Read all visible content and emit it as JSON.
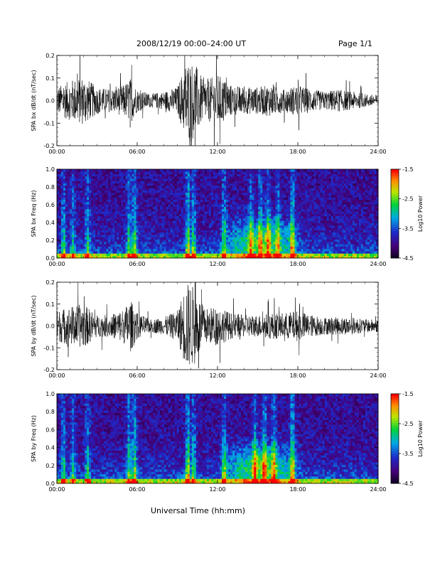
{
  "page": {
    "title": "2008/12/19   00:00–24:00 UT",
    "page_label": "Page 1/1",
    "x_title": "Universal Time (hh:mm)"
  },
  "colors": {
    "waveform": "#000000",
    "spectrogram_low": "#1a0033",
    "spectrogram_high": "#ff0000"
  },
  "colorbar": {
    "label": "Log10 Power",
    "ticks": [
      "-1.5",
      "-2.5",
      "-3.5",
      "-4.5"
    ],
    "range": [
      -4.5,
      -1.5
    ]
  },
  "chart_data": [
    {
      "type": "line",
      "ylabel": "SPA bx dB/dt (nT/sec)",
      "xlim": [
        0,
        24
      ],
      "ylim": [
        -0.2,
        0.2
      ],
      "x_ticks": [
        "00:00",
        "06:00",
        "12:00",
        "18:00",
        "24:00"
      ],
      "y_ticks": [
        "0.2",
        "0.1",
        "0.0",
        "-0.1",
        "-0.2"
      ],
      "envelope": {
        "x": [
          0,
          1,
          2,
          3,
          4,
          5,
          5.5,
          6,
          7,
          8,
          9,
          9.7,
          10.3,
          11,
          12,
          13,
          14,
          15,
          16,
          17,
          18,
          19,
          20,
          21,
          22,
          23,
          24
        ],
        "amplitude": [
          0.06,
          0.09,
          0.11,
          0.06,
          0.05,
          0.07,
          0.1,
          0.05,
          0.03,
          0.04,
          0.06,
          0.18,
          0.17,
          0.08,
          0.12,
          0.07,
          0.06,
          0.06,
          0.07,
          0.05,
          0.07,
          0.05,
          0.04,
          0.05,
          0.04,
          0.03,
          0.025
        ]
      }
    },
    {
      "type": "heatmap",
      "ylabel": "SPA bx Freq (Hz)",
      "xlim": [
        0,
        24
      ],
      "ylim": [
        0,
        1.0
      ],
      "x_ticks": [
        "00:00",
        "06:00",
        "12:00",
        "18:00",
        "24:00"
      ],
      "y_ticks": [
        "1.0",
        "0.8",
        "0.6",
        "0.4",
        "0.2",
        "0.0"
      ],
      "bursts": {
        "t": [
          0.5,
          1.2,
          2.3,
          5.4,
          5.8,
          9.8,
          10.2,
          12.5,
          14.5,
          15.2,
          15.8,
          16.5,
          17.6
        ],
        "strength": [
          0.6,
          0.5,
          0.6,
          0.7,
          0.8,
          0.9,
          0.7,
          0.7,
          0.6,
          0.7,
          0.7,
          0.6,
          0.9
        ]
      }
    },
    {
      "type": "line",
      "ylabel": "SPA by dB/dt (nT/sec)",
      "xlim": [
        0,
        24
      ],
      "ylim": [
        -0.2,
        0.2
      ],
      "x_ticks": [
        "00:00",
        "06:00",
        "12:00",
        "18:00",
        "24:00"
      ],
      "y_ticks": [
        "0.2",
        "0.1",
        "0.0",
        "-0.1",
        "-0.2"
      ],
      "envelope": {
        "x": [
          0,
          1,
          2,
          3,
          4,
          5,
          5.5,
          6,
          7,
          8,
          9,
          9.7,
          10.3,
          11,
          12,
          13,
          14,
          15,
          16,
          17,
          18,
          19,
          20,
          21,
          22,
          23,
          24
        ],
        "amplitude": [
          0.07,
          0.09,
          0.1,
          0.05,
          0.05,
          0.08,
          0.12,
          0.06,
          0.03,
          0.04,
          0.07,
          0.2,
          0.18,
          0.08,
          0.09,
          0.06,
          0.05,
          0.05,
          0.06,
          0.06,
          0.07,
          0.05,
          0.04,
          0.04,
          0.04,
          0.03,
          0.03
        ]
      }
    },
    {
      "type": "heatmap",
      "ylabel": "SPA by Freq (Hz)",
      "xlim": [
        0,
        24
      ],
      "ylim": [
        0,
        1.0
      ],
      "x_ticks": [
        "00:00",
        "06:00",
        "12:00",
        "18:00",
        "24:00"
      ],
      "y_ticks": [
        "1.0",
        "0.8",
        "0.6",
        "0.4",
        "0.2",
        "0.0"
      ],
      "bursts": {
        "t": [
          0.5,
          1.2,
          2.3,
          5.4,
          5.8,
          9.8,
          10.2,
          12.5,
          14.8,
          15.5,
          16.2,
          17.6
        ],
        "strength": [
          0.6,
          0.5,
          0.6,
          0.7,
          0.8,
          0.9,
          0.7,
          0.7,
          0.7,
          0.8,
          0.7,
          0.9
        ]
      }
    }
  ]
}
